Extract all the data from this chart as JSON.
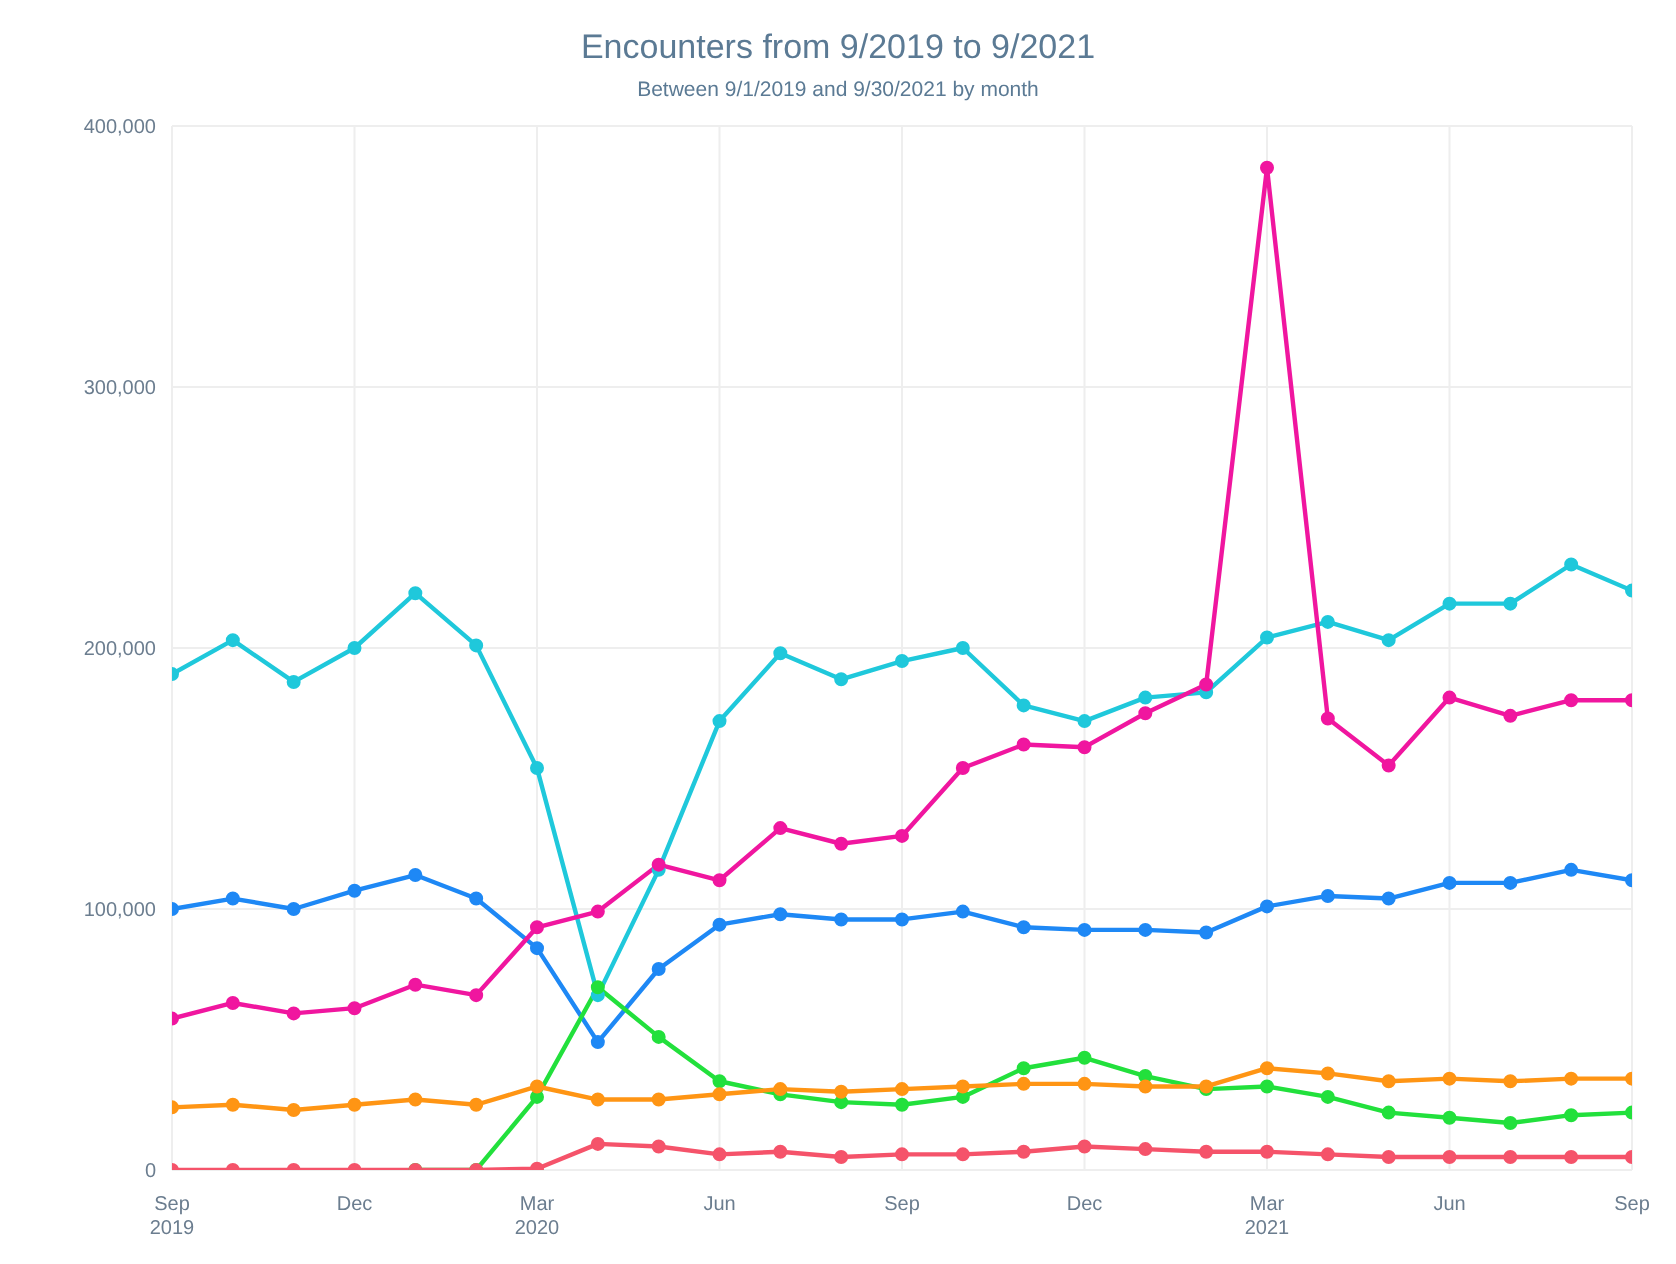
{
  "chart_data": {
    "type": "line",
    "title": "Encounters from 9/2019 to 9/2021",
    "subtitle": "Between 9/1/2019 and 9/30/2021 by month",
    "categories": [
      "Sep\n2019",
      null,
      null,
      "Dec",
      null,
      null,
      "Mar\n2020",
      null,
      null,
      "Jun",
      null,
      null,
      "Sep",
      null,
      null,
      "Dec",
      null,
      null,
      "Mar\n2021",
      null,
      null,
      "Jun",
      null,
      null,
      "Sep"
    ],
    "series": [
      {
        "color": "#1fc8db",
        "values": [
          190000,
          203000,
          187000,
          200000,
          221000,
          201000,
          154000,
          67000,
          115000,
          172000,
          198000,
          188000,
          195000,
          200000,
          178000,
          172000,
          181000,
          183000,
          204000,
          210000,
          203000,
          217000,
          217000,
          232000,
          222000
        ]
      },
      {
        "color": "#1e88f5",
        "values": [
          100000,
          104000,
          100000,
          107000,
          113000,
          104000,
          85000,
          49000,
          77000,
          94000,
          98000,
          96000,
          96000,
          99000,
          93000,
          92000,
          92000,
          91000,
          101000,
          105000,
          104000,
          110000,
          110000,
          115000,
          111000
        ]
      },
      {
        "color": "#f0169f",
        "values": [
          58000,
          64000,
          60000,
          62000,
          71000,
          67000,
          93000,
          99000,
          117000,
          111000,
          131000,
          125000,
          128000,
          154000,
          163000,
          162000,
          175000,
          186000,
          384000,
          173000,
          155000,
          181000,
          174000,
          180000,
          180000
        ]
      },
      {
        "color": "#22e03c",
        "values": [
          null,
          null,
          null,
          null,
          0,
          0,
          28000,
          70000,
          51000,
          34000,
          29000,
          26000,
          25000,
          28000,
          39000,
          43000,
          36000,
          31000,
          32000,
          28000,
          22000,
          20000,
          18000,
          21000,
          22000
        ]
      },
      {
        "color": "#ff9514",
        "values": [
          24000,
          25000,
          23000,
          25000,
          27000,
          25000,
          32000,
          27000,
          27000,
          29000,
          31000,
          30000,
          31000,
          32000,
          33000,
          33000,
          32000,
          32000,
          39000,
          37000,
          34000,
          35000,
          34000,
          35000,
          35000
        ]
      },
      {
        "color": "#f5536a",
        "values": [
          0,
          0,
          0,
          0,
          0,
          0,
          500,
          10000,
          9000,
          6000,
          7000,
          5000,
          6000,
          6000,
          7000,
          9000,
          8000,
          7000,
          7000,
          6000,
          5000,
          5000,
          5000,
          5000,
          5000
        ]
      }
    ],
    "ylim": [
      0,
      400000
    ],
    "yticks": [
      0,
      {
        "value": 100000,
        "label": "100,000"
      },
      {
        "value": 200000,
        "label": "200,000"
      },
      {
        "value": 300000,
        "label": "300,000"
      },
      {
        "value": 400000,
        "label": "400,000"
      }
    ],
    "grid": true,
    "legend": false,
    "marker": "circle",
    "line_style": "solid"
  }
}
